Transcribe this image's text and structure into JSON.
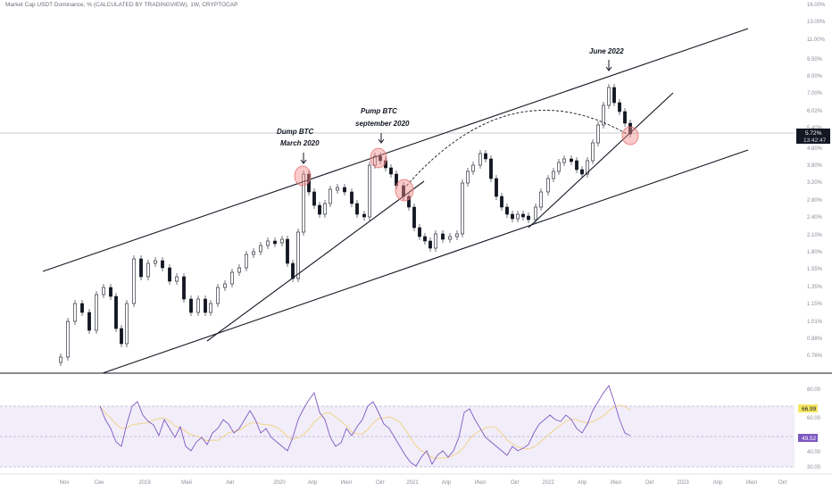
{
  "header": {
    "title": "Market Cap USDT Dominance, % (CALCULATED BY TRADINGVIEW), 1W, CRYPTOCAP"
  },
  "chart_data": {
    "type": "candlestick",
    "price_axis": {
      "labels": [
        "16.00%",
        "13.00%",
        "11.00%",
        "9.50%",
        "8.00%",
        "7.00%",
        "6.02%",
        "5.40%",
        "4.60%",
        "3.80%",
        "3.20%",
        "2.80%",
        "2.40%",
        "2.10%",
        "1.80%",
        "1.55%",
        "1.35%",
        "1.15%",
        "1.01%",
        "0.88%",
        "0.76%"
      ],
      "current_value": "5.72%",
      "countdown": "13:42:47"
    },
    "rsi": {
      "labels": [
        "80.00",
        "60.00",
        "40.00",
        "30.00"
      ],
      "value_rsi": "66.99",
      "value_signal": "49.52"
    },
    "time_axis": [
      "Nov",
      "Сен",
      "2019",
      "Май",
      "Авг",
      "2020",
      "Апр",
      "Июл",
      "Окт",
      "2021",
      "Апр",
      "Июл",
      "Окт",
      "2022",
      "Апр",
      "Июл",
      "Окт",
      "2023",
      "Апр",
      "Июл",
      "Окт"
    ],
    "annotations": [
      {
        "line1": "Dump BTC",
        "line2": "March 2020"
      },
      {
        "line1": "Pump BTC",
        "line2": "september 2020"
      },
      {
        "line1": "June 2022",
        "line2": ""
      }
    ],
    "colors": {
      "up": "#131722",
      "down": "#131722",
      "rsi": "#7e57c2",
      "rsi_signal": "#f0d38a",
      "rsi_band": "#ede7f6",
      "circle": "#f28b8b"
    }
  }
}
